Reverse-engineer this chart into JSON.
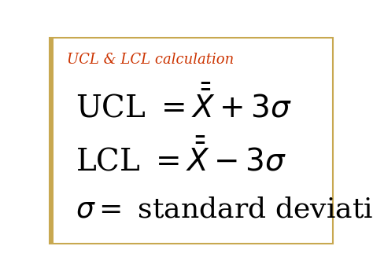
{
  "title": "UCL & LCL calculation",
  "title_color": "#cc3300",
  "title_fontsize": 13,
  "background_color": "#ffffff",
  "border_color": "#c8a850",
  "text_color": "#000000",
  "formula_fontsize": 28,
  "sigma_fontsize": 26
}
